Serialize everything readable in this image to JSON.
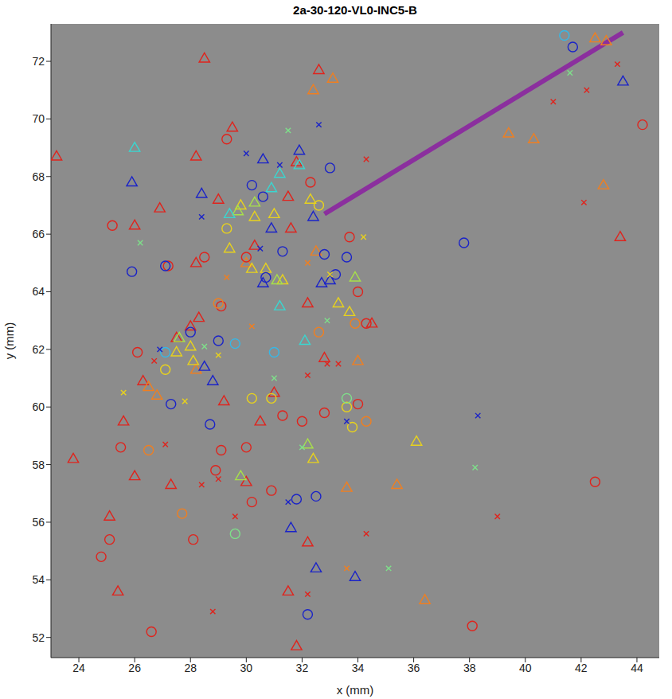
{
  "chart_data": {
    "type": "scatter",
    "title": "2a-30-120-VL0-INC5-B",
    "x_label": "x (mm)",
    "y_label": "y (mm)",
    "xlim": [
      23.0,
      44.8
    ],
    "ylim": [
      51.3,
      73.3
    ],
    "xticks": [
      24,
      26,
      28,
      30,
      32,
      34,
      36,
      38,
      40,
      42,
      44
    ],
    "yticks": [
      52,
      54,
      56,
      58,
      60,
      62,
      64,
      66,
      68,
      70,
      72
    ],
    "grid": false,
    "series": [
      {
        "type": "line",
        "color": "#8b2f9e",
        "line_style": "solid",
        "x": [
          32.8,
          43.5
        ],
        "y": [
          66.7,
          73.0
        ]
      },
      {
        "color": "#e0231c",
        "marker": "triangle",
        "x": [
          23.2,
          28.5,
          29.5,
          28.2,
          32.6,
          31.8,
          31.5,
          30.3,
          31.6,
          29.0,
          28.2,
          28.0,
          28.3,
          27.5,
          26.3,
          25.6,
          29.2,
          31.0,
          32.2,
          32.8,
          30.5,
          23.8,
          26.0,
          27.3,
          30.0,
          25.1,
          25.4,
          31.5,
          32.2,
          31.8,
          34.5,
          43.4,
          26.9,
          26.0
        ],
        "y": [
          68.7,
          72.1,
          69.7,
          68.7,
          71.7,
          68.5,
          67.3,
          65.6,
          66.2,
          67.2,
          65.0,
          62.8,
          63.1,
          62.4,
          60.9,
          59.5,
          60.2,
          60.5,
          63.6,
          61.7,
          59.5,
          58.2,
          57.6,
          57.3,
          57.4,
          56.2,
          53.6,
          53.6,
          55.3,
          51.7,
          62.9,
          65.9,
          66.9,
          66.3
        ]
      },
      {
        "color": "#f07f20",
        "marker": "triangle",
        "x": [
          32.4,
          33.1,
          39.4,
          40.3,
          42.5,
          42.9,
          42.8,
          26.8,
          26.5,
          34.0,
          33.6,
          35.4,
          36.4,
          32.5,
          30.0,
          28.2
        ],
        "y": [
          71.0,
          71.4,
          69.5,
          69.3,
          72.8,
          72.7,
          67.7,
          60.4,
          60.7,
          61.6,
          57.2,
          57.3,
          53.3,
          65.4,
          65.0,
          61.3
        ]
      },
      {
        "color": "#e8d21d",
        "marker": "triangle",
        "x": [
          29.8,
          29.4,
          31.0,
          30.3,
          32.3,
          31.3,
          30.7,
          33.3,
          33.7,
          28.0,
          27.5,
          36.1,
          28.1,
          32.4,
          30.2
        ],
        "y": [
          67.0,
          65.5,
          66.7,
          66.6,
          67.2,
          64.4,
          64.8,
          63.6,
          63.3,
          62.1,
          61.9,
          58.8,
          61.6,
          58.2,
          64.8
        ]
      },
      {
        "color": "#a8e04a",
        "marker": "triangle",
        "x": [
          31.1,
          29.7,
          30.3,
          33.9,
          27.6,
          29.8,
          32.2
        ],
        "y": [
          64.4,
          66.8,
          67.1,
          64.5,
          62.4,
          57.6,
          58.7
        ]
      },
      {
        "color": "#3ad6d0",
        "marker": "triangle",
        "x": [
          26.0,
          30.9,
          31.2,
          29.4,
          31.2,
          32.1,
          31.9
        ],
        "y": [
          69.0,
          67.6,
          68.1,
          66.7,
          63.5,
          62.3,
          68.4
        ]
      },
      {
        "color": "#1a23c8",
        "marker": "triangle",
        "x": [
          25.9,
          28.4,
          30.6,
          31.9,
          30.9,
          32.4,
          33.0,
          32.7,
          30.6,
          28.5,
          28.8,
          31.6,
          32.5,
          33.9,
          43.5
        ],
        "y": [
          67.8,
          67.4,
          68.6,
          68.9,
          66.2,
          66.6,
          64.4,
          64.3,
          64.3,
          61.4,
          60.9,
          55.8,
          54.4,
          54.1,
          71.3
        ]
      },
      {
        "color": "#e0231c",
        "marker": "circle",
        "x": [
          29.3,
          25.2,
          27.2,
          28.5,
          32.3,
          30.0,
          33.7,
          34.0,
          26.1,
          29.1,
          31.3,
          32.0,
          32.8,
          34.0,
          30.0,
          29.1,
          25.5,
          28.9,
          30.9,
          30.2,
          28.1,
          25.1,
          24.8,
          26.6,
          38.1,
          42.5,
          44.2,
          34.3
        ],
        "y": [
          69.3,
          66.3,
          64.9,
          65.2,
          67.8,
          65.2,
          65.9,
          64.0,
          61.9,
          63.5,
          59.7,
          59.5,
          59.8,
          60.1,
          58.6,
          58.5,
          58.6,
          57.8,
          57.1,
          56.7,
          55.4,
          55.4,
          54.8,
          52.2,
          52.4,
          57.4,
          69.8,
          62.9
        ]
      },
      {
        "color": "#f07f20",
        "marker": "circle",
        "x": [
          26.5,
          27.7,
          29.0,
          34.3,
          33.9,
          32.6
        ],
        "y": [
          58.5,
          56.3,
          63.6,
          59.5,
          62.9,
          62.6
        ]
      },
      {
        "color": "#e8d21d",
        "marker": "circle",
        "x": [
          29.3,
          27.1,
          30.2,
          30.9,
          33.6,
          33.8,
          32.6
        ],
        "y": [
          66.2,
          61.3,
          60.3,
          60.3,
          60.0,
          59.3,
          67.0
        ]
      },
      {
        "color": "#7ee08a",
        "marker": "circle",
        "x": [
          29.6,
          33.6
        ],
        "y": [
          55.6,
          60.3
        ]
      },
      {
        "color": "#35b8e8",
        "marker": "circle",
        "x": [
          27.1,
          29.6,
          31.0,
          41.4
        ],
        "y": [
          61.9,
          62.2,
          61.9,
          72.9
        ]
      },
      {
        "color": "#1a23c8",
        "marker": "circle",
        "x": [
          25.9,
          27.1,
          27.3,
          28.0,
          29.0,
          30.2,
          30.6,
          31.3,
          30.7,
          32.8,
          33.2,
          33.6,
          28.7,
          31.8,
          32.5,
          32.2,
          33.0,
          37.8,
          41.7
        ],
        "y": [
          64.7,
          64.9,
          60.1,
          62.6,
          62.3,
          67.7,
          67.3,
          65.4,
          64.5,
          65.3,
          64.6,
          65.2,
          59.4,
          56.8,
          56.9,
          52.8,
          68.3,
          65.7,
          72.5
        ]
      },
      {
        "color": "#e0231c",
        "marker": "x",
        "x": [
          34.3,
          42.2,
          41.0,
          43.3,
          42.1,
          26.7,
          27.1,
          28.4,
          29.0,
          32.2,
          32.9,
          33.3,
          34.3,
          32.2,
          29.6,
          39.0,
          28.8
        ],
        "y": [
          68.6,
          71.0,
          70.6,
          71.9,
          67.1,
          61.6,
          58.7,
          57.3,
          57.5,
          61.1,
          61.5,
          61.5,
          55.6,
          53.5,
          56.2,
          56.2,
          52.9
        ]
      },
      {
        "color": "#f07f20",
        "marker": "x",
        "x": [
          29.3,
          30.2,
          33.6,
          32.2
        ],
        "y": [
          64.5,
          62.8,
          54.4,
          65.0
        ]
      },
      {
        "color": "#e8d21d",
        "marker": "x",
        "x": [
          25.6,
          27.8,
          29.0,
          34.2,
          33.0
        ],
        "y": [
          60.5,
          60.2,
          61.8,
          65.9,
          64.6
        ]
      },
      {
        "color": "#7ee08a",
        "marker": "x",
        "x": [
          26.2,
          28.5,
          31.0,
          32.0,
          35.1,
          38.2,
          41.6,
          31.5,
          32.9
        ],
        "y": [
          65.7,
          62.1,
          61.0,
          58.6,
          54.4,
          57.9,
          71.6,
          69.6,
          63.0
        ]
      },
      {
        "color": "#1a23c8",
        "marker": "x",
        "x": [
          30.0,
          28.4,
          32.6,
          31.2,
          30.5,
          33.6,
          31.5,
          38.3,
          26.9
        ],
        "y": [
          68.8,
          66.6,
          69.8,
          68.4,
          65.5,
          59.5,
          56.7,
          59.7,
          62.0
        ]
      }
    ]
  }
}
